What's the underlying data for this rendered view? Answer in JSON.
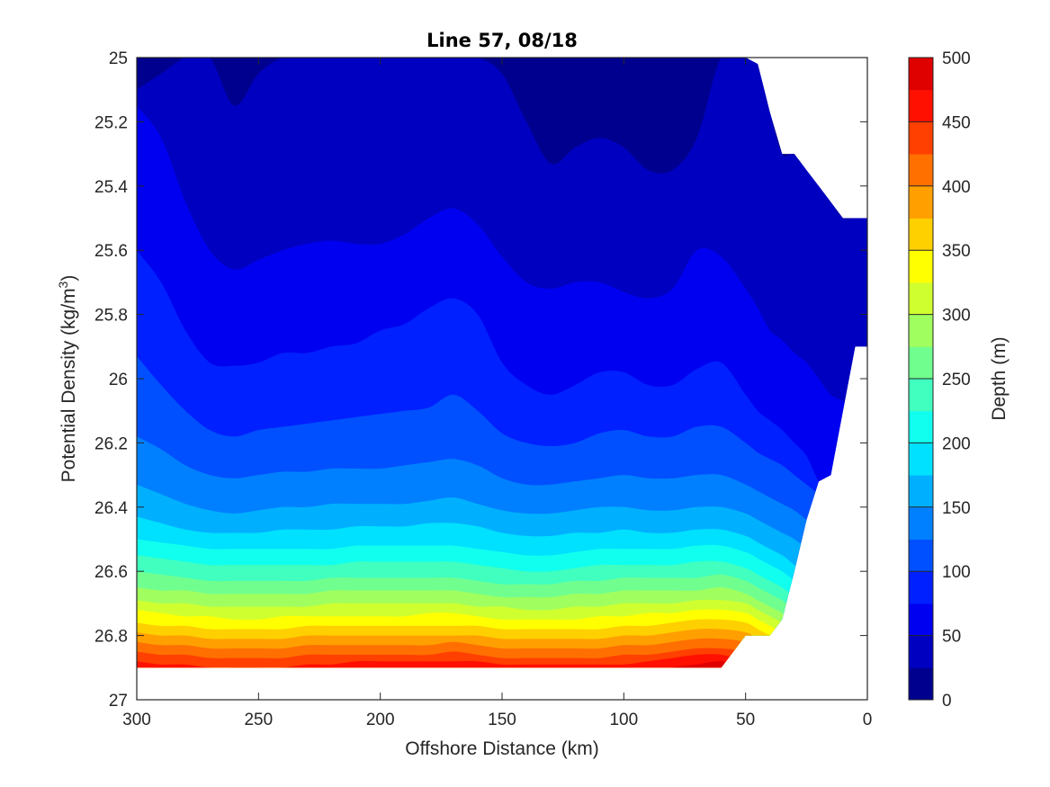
{
  "chart_data": {
    "type": "filled-contour",
    "title": "Line 57, 08/18",
    "xlabel": "Offshore Distance (km)",
    "ylabel_main": "Potential Density (kg/m",
    "ylabel_sup": "3",
    "ylabel_end": ")",
    "xlim": [
      300,
      0
    ],
    "ylim": [
      25,
      27
    ],
    "y_reversed": true,
    "x_ticks": [
      300,
      250,
      200,
      150,
      100,
      50,
      0
    ],
    "x_tick_labels": [
      "300",
      "250",
      "200",
      "150",
      "100",
      "50",
      "0"
    ],
    "y_ticks": [
      25,
      25.2,
      25.4,
      25.6,
      25.8,
      26,
      26.2,
      26.4,
      26.6,
      26.8,
      27
    ],
    "y_tick_labels": [
      "25",
      "25.2",
      "25.4",
      "25.6",
      "25.8",
      "26",
      "26.2",
      "26.4",
      "26.6",
      "26.8",
      "27"
    ],
    "colorbar": {
      "label": "Depth (m)",
      "range": [
        0,
        500
      ],
      "ticks": [
        0,
        50,
        100,
        150,
        200,
        250,
        300,
        350,
        400,
        450,
        500
      ],
      "tick_labels": [
        "0",
        "50",
        "100",
        "150",
        "200",
        "250",
        "300",
        "350",
        "400",
        "450",
        "500"
      ]
    },
    "levels": [
      0,
      25,
      50,
      75,
      100,
      125,
      150,
      175,
      200,
      225,
      250,
      275,
      300,
      325,
      350,
      375,
      400,
      425,
      450,
      475,
      500
    ],
    "level_colors": [
      "#00008f",
      "#0000c0",
      "#0000f0",
      "#0020ff",
      "#0050ff",
      "#0080ff",
      "#00b0ff",
      "#00e0ff",
      "#10ffef",
      "#40ffbf",
      "#70ff8f",
      "#a0ff5f",
      "#d0ff2f",
      "#ffff00",
      "#ffd000",
      "#ffa000",
      "#ff7000",
      "#ff4000",
      "#ff1000",
      "#df0000",
      "#af0000"
    ],
    "x": [
      300,
      290,
      280,
      270,
      260,
      250,
      240,
      230,
      220,
      210,
      200,
      190,
      180,
      170,
      160,
      150,
      140,
      130,
      120,
      110,
      100,
      90,
      80,
      70,
      60,
      50,
      45,
      40,
      35,
      30,
      25,
      20,
      15,
      10,
      5,
      0
    ],
    "bottom_density": [
      26.9,
      26.9,
      26.9,
      26.9,
      26.9,
      26.9,
      26.9,
      26.9,
      26.9,
      26.9,
      26.9,
      26.9,
      26.9,
      26.9,
      26.9,
      26.9,
      26.9,
      26.9,
      26.9,
      26.9,
      26.9,
      26.9,
      26.9,
      26.9,
      26.9,
      26.8,
      26.8,
      26.8,
      26.75,
      26.6,
      26.44,
      26.32,
      26.3,
      26.1,
      25.9,
      25.9
    ],
    "top_density": [
      25,
      25,
      25,
      25,
      25,
      25,
      25,
      25,
      25,
      25,
      25,
      25,
      25,
      25,
      25,
      25,
      25,
      25,
      25,
      25,
      25,
      25,
      25,
      25,
      25,
      25,
      25.02,
      25.17,
      25.3,
      25.3,
      25.35,
      25.4,
      25.45,
      25.5,
      25.5,
      25.5
    ],
    "depth_surfaces": [
      {
        "depth": 25,
        "density": [
          25.1,
          25.05,
          25.0,
          25.0,
          25.15,
          25.05,
          25.0,
          25.0,
          25.0,
          25.0,
          25.0,
          25.0,
          25.0,
          25.0,
          25.0,
          25.05,
          25.2,
          25.33,
          25.28,
          25.25,
          25.28,
          25.35,
          25.35,
          25.25,
          25.0,
          25.0,
          25.02,
          25.17,
          25.3,
          25.3,
          25.35,
          25.4,
          25.45,
          25.5,
          25.5,
          25.5
        ]
      },
      {
        "depth": 50,
        "density": [
          25.15,
          25.25,
          25.45,
          25.6,
          25.66,
          25.63,
          25.6,
          25.58,
          25.57,
          25.58,
          25.58,
          25.55,
          25.5,
          25.47,
          25.52,
          25.62,
          25.7,
          25.72,
          25.7,
          25.7,
          25.73,
          25.75,
          25.72,
          25.6,
          25.62,
          25.72,
          25.78,
          25.85,
          25.88,
          25.92,
          25.95,
          26.0,
          26.05,
          26.07,
          26.1,
          26.13
        ]
      },
      {
        "depth": 75,
        "density": [
          25.6,
          25.7,
          25.85,
          25.95,
          25.96,
          25.95,
          25.92,
          25.92,
          25.9,
          25.89,
          25.85,
          25.83,
          25.78,
          25.75,
          25.8,
          25.95,
          26.02,
          26.05,
          26.02,
          25.98,
          25.98,
          26.02,
          26.02,
          25.97,
          25.95,
          26.05,
          26.1,
          26.13,
          26.16,
          26.2,
          26.24,
          26.32,
          26.36,
          26.4,
          26.45,
          26.48
        ]
      },
      {
        "depth": 100,
        "density": [
          25.93,
          26.02,
          26.1,
          26.16,
          26.18,
          26.16,
          26.15,
          26.14,
          26.13,
          26.12,
          26.11,
          26.1,
          26.09,
          26.05,
          26.1,
          26.17,
          26.2,
          26.21,
          26.2,
          26.17,
          26.16,
          26.18,
          26.18,
          26.15,
          26.15,
          26.2,
          26.23,
          26.25,
          26.27,
          26.3,
          26.33,
          26.36,
          26.4,
          26.44,
          26.47,
          26.5
        ]
      },
      {
        "depth": 125,
        "density": [
          26.18,
          26.22,
          26.27,
          26.3,
          26.31,
          26.3,
          26.29,
          26.29,
          26.28,
          26.28,
          26.28,
          26.27,
          26.26,
          26.25,
          26.27,
          26.31,
          26.33,
          26.33,
          26.32,
          26.31,
          26.3,
          26.31,
          26.31,
          26.3,
          26.3,
          26.33,
          26.35,
          26.37,
          26.39,
          26.41,
          26.44,
          26.47,
          26.5,
          26.53,
          26.56,
          26.58
        ]
      },
      {
        "depth": 150,
        "density": [
          26.33,
          26.36,
          26.39,
          26.41,
          26.42,
          26.41,
          26.4,
          26.4,
          26.39,
          26.39,
          26.39,
          26.39,
          26.38,
          26.37,
          26.39,
          26.41,
          26.42,
          26.42,
          26.41,
          26.4,
          26.4,
          26.41,
          26.41,
          26.4,
          26.4,
          26.42,
          26.44,
          26.46,
          26.48,
          26.5,
          26.53,
          26.56,
          26.59,
          26.62,
          26.65,
          26.68
        ]
      },
      {
        "depth": 175,
        "density": [
          26.43,
          26.45,
          26.47,
          26.48,
          26.48,
          26.48,
          26.47,
          26.47,
          26.47,
          26.46,
          26.46,
          26.46,
          26.45,
          26.45,
          26.46,
          26.48,
          26.49,
          26.49,
          26.48,
          26.48,
          26.47,
          26.48,
          26.48,
          26.47,
          26.47,
          26.49,
          26.51,
          26.53,
          26.55,
          26.58,
          26.61,
          26.64,
          26.67,
          26.7,
          26.73,
          26.76
        ]
      },
      {
        "depth": 200,
        "density": [
          26.5,
          26.51,
          26.52,
          26.53,
          26.53,
          26.53,
          26.53,
          26.53,
          26.53,
          26.52,
          26.52,
          26.52,
          26.52,
          26.52,
          26.53,
          26.54,
          26.55,
          26.55,
          26.54,
          26.53,
          26.53,
          26.53,
          26.53,
          26.52,
          26.52,
          26.54,
          26.56,
          26.58,
          26.6,
          26.63,
          26.66,
          26.69,
          26.72,
          26.75,
          26.78,
          26.8
        ]
      },
      {
        "depth": 225,
        "density": [
          26.55,
          26.56,
          26.57,
          26.58,
          26.58,
          26.58,
          26.58,
          26.58,
          26.58,
          26.57,
          26.57,
          26.57,
          26.57,
          26.57,
          26.58,
          26.59,
          26.6,
          26.6,
          26.59,
          26.58,
          26.58,
          26.58,
          26.58,
          26.57,
          26.57,
          26.59,
          26.61,
          26.63,
          26.65,
          26.68,
          26.71,
          26.74,
          26.77,
          26.8,
          26.83,
          26.85
        ]
      },
      {
        "depth": 250,
        "density": [
          26.6,
          26.61,
          26.62,
          26.63,
          26.63,
          26.63,
          26.63,
          26.63,
          26.62,
          26.62,
          26.62,
          26.62,
          26.62,
          26.62,
          26.63,
          26.64,
          26.64,
          26.64,
          26.63,
          26.63,
          26.62,
          26.62,
          26.62,
          26.62,
          26.61,
          26.63,
          26.65,
          26.67,
          26.69,
          26.72,
          26.75,
          26.78,
          26.81,
          26.84,
          26.87,
          26.9
        ]
      },
      {
        "depth": 275,
        "density": [
          26.65,
          26.66,
          26.66,
          26.67,
          26.67,
          26.67,
          26.67,
          26.67,
          26.66,
          26.66,
          26.66,
          26.66,
          26.66,
          26.66,
          26.67,
          26.68,
          26.68,
          26.68,
          26.67,
          26.67,
          26.66,
          26.66,
          26.66,
          26.66,
          26.65,
          26.67,
          26.69,
          26.71,
          26.73,
          26.76,
          26.79,
          26.82,
          26.85,
          26.88,
          26.9,
          26.92
        ]
      },
      {
        "depth": 300,
        "density": [
          26.69,
          26.7,
          26.7,
          26.71,
          26.71,
          26.71,
          26.71,
          26.71,
          26.7,
          26.7,
          26.7,
          26.7,
          26.7,
          26.7,
          26.71,
          26.71,
          26.72,
          26.72,
          26.71,
          26.71,
          26.7,
          26.7,
          26.7,
          26.69,
          26.69,
          26.7,
          26.72,
          26.74,
          26.76,
          26.79,
          26.82,
          26.85,
          26.88,
          26.9,
          26.92,
          26.94
        ]
      },
      {
        "depth": 325,
        "density": [
          26.72,
          26.73,
          26.74,
          26.74,
          26.75,
          26.75,
          26.74,
          26.74,
          26.74,
          26.74,
          26.74,
          26.74,
          26.73,
          26.73,
          26.74,
          26.75,
          26.75,
          26.75,
          26.75,
          26.74,
          26.74,
          26.73,
          26.73,
          26.72,
          26.72,
          26.73,
          26.75,
          26.77,
          26.79,
          26.82,
          26.85,
          26.88,
          26.9,
          26.92,
          26.94,
          26.96
        ]
      },
      {
        "depth": 350,
        "density": [
          26.76,
          26.77,
          26.77,
          26.78,
          26.78,
          26.78,
          26.78,
          26.77,
          26.77,
          26.77,
          26.77,
          26.77,
          26.77,
          26.77,
          26.77,
          26.78,
          26.78,
          26.78,
          26.78,
          26.78,
          26.77,
          26.77,
          26.76,
          26.75,
          26.75,
          26.76,
          26.78,
          26.8,
          26.82,
          26.85,
          26.88,
          26.9,
          26.92,
          26.94,
          26.96,
          26.98
        ]
      },
      {
        "depth": 375,
        "density": [
          26.79,
          26.8,
          26.8,
          26.81,
          26.81,
          26.81,
          26.81,
          26.8,
          26.8,
          26.8,
          26.8,
          26.8,
          26.8,
          26.8,
          26.8,
          26.81,
          26.81,
          26.81,
          26.81,
          26.81,
          26.8,
          26.8,
          26.79,
          26.78,
          26.78,
          26.79,
          26.81,
          26.83,
          26.85,
          26.88,
          26.9,
          26.92,
          26.94,
          26.96,
          26.98,
          27.0
        ]
      },
      {
        "depth": 400,
        "density": [
          26.82,
          26.83,
          26.83,
          26.84,
          26.84,
          26.84,
          26.84,
          26.83,
          26.83,
          26.83,
          26.83,
          26.83,
          26.83,
          26.82,
          26.83,
          26.84,
          26.84,
          26.84,
          26.84,
          26.84,
          26.83,
          26.83,
          26.82,
          26.81,
          26.81,
          26.82,
          26.84,
          26.86,
          26.88,
          26.9,
          26.92,
          26.94,
          26.96,
          26.98,
          27.0,
          27.0
        ]
      },
      {
        "depth": 425,
        "density": [
          26.85,
          26.86,
          26.86,
          26.87,
          26.87,
          26.87,
          26.87,
          26.86,
          26.86,
          26.86,
          26.86,
          26.86,
          26.86,
          26.85,
          26.86,
          26.87,
          26.87,
          26.87,
          26.87,
          26.87,
          26.86,
          26.86,
          26.85,
          26.84,
          26.84,
          26.85,
          26.87,
          26.89,
          26.9,
          26.92,
          26.94,
          26.96,
          26.98,
          27.0,
          27.0,
          27.0
        ]
      },
      {
        "depth": 450,
        "density": [
          26.88,
          26.89,
          26.89,
          26.9,
          26.9,
          26.9,
          26.9,
          26.89,
          26.89,
          26.88,
          26.88,
          26.88,
          26.88,
          26.88,
          26.88,
          26.89,
          26.89,
          26.89,
          26.89,
          26.89,
          26.89,
          26.88,
          26.87,
          26.86,
          26.86,
          26.88,
          26.9,
          26.92,
          26.94,
          26.96,
          26.98,
          27.0,
          27.0,
          27.0,
          27.0,
          27.0
        ]
      },
      {
        "depth": 475,
        "density": [
          26.92,
          26.92,
          26.92,
          26.93,
          26.93,
          26.93,
          26.93,
          26.92,
          26.92,
          26.92,
          26.92,
          26.92,
          26.92,
          26.92,
          26.92,
          26.92,
          26.92,
          26.92,
          26.92,
          26.92,
          26.92,
          26.92,
          26.9,
          26.89,
          26.88,
          26.9,
          26.92,
          26.94,
          26.96,
          26.98,
          27.0,
          27.0,
          27.0,
          27.0,
          27.0,
          27.0
        ]
      }
    ]
  }
}
